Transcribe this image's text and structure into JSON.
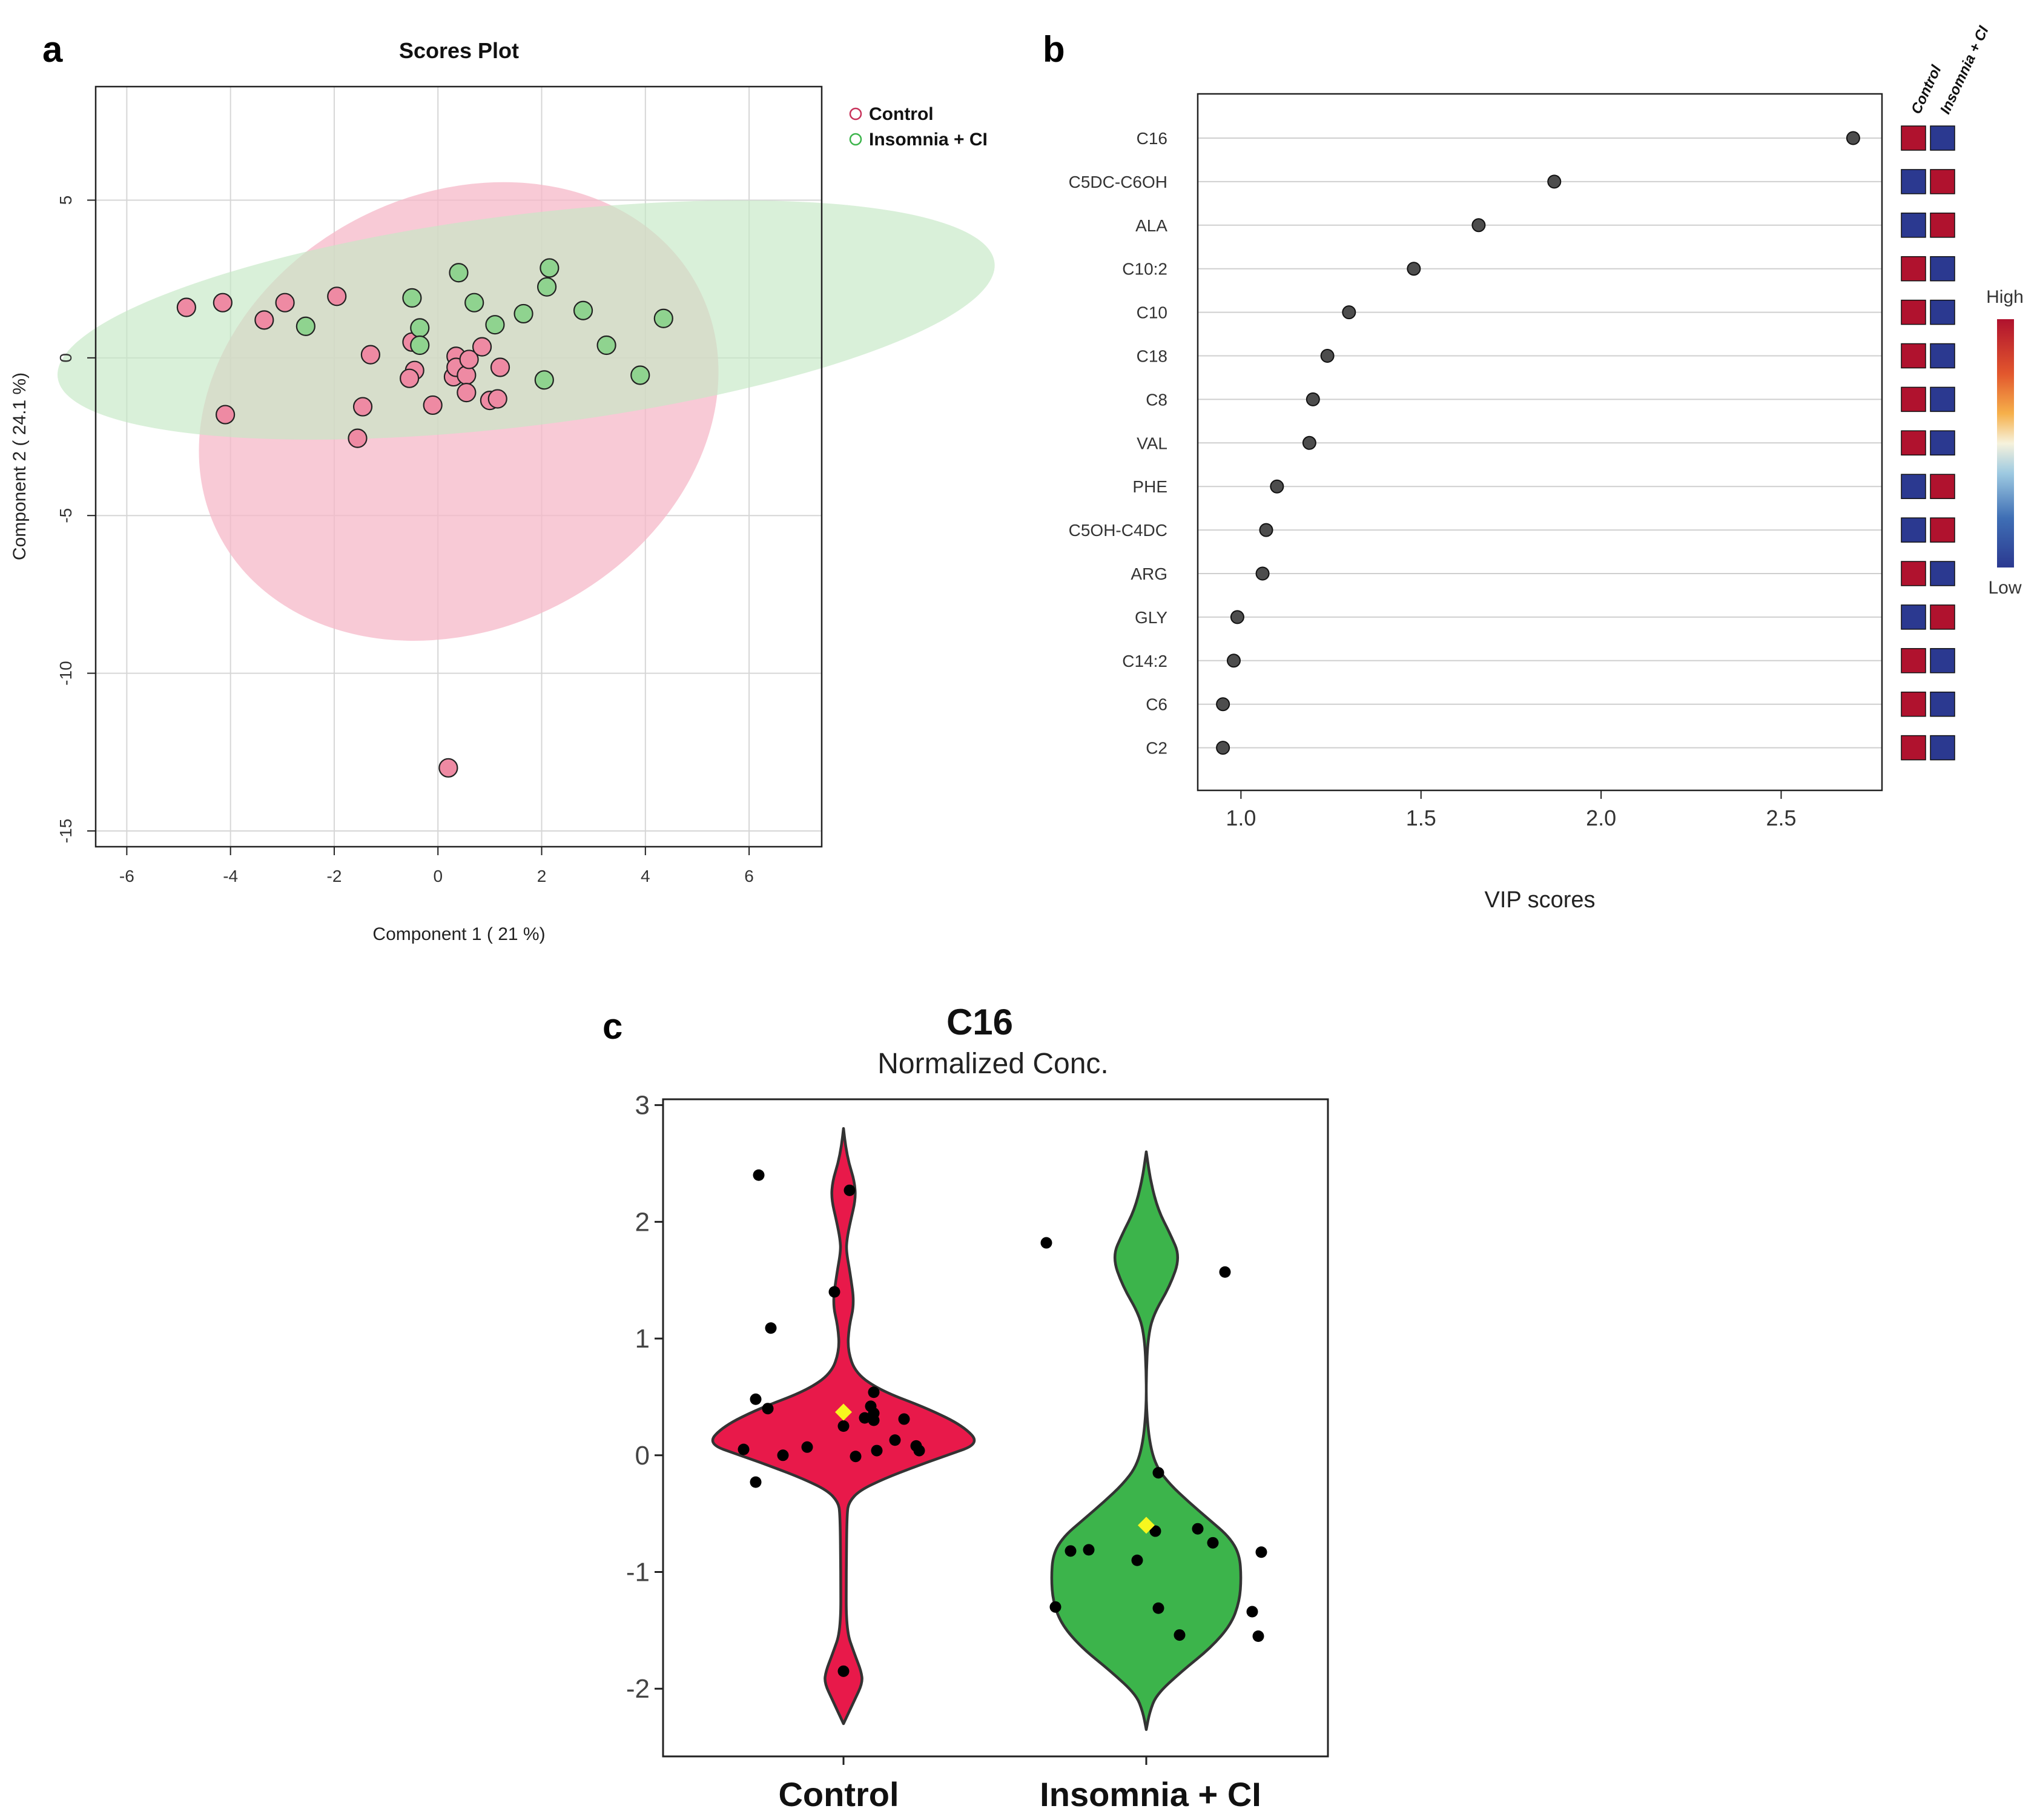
{
  "panels": {
    "a": "a",
    "b": "b",
    "c": "c"
  },
  "colors": {
    "control_fill": "#f5b8c8",
    "control_point": "#ee8aa3",
    "insomnia_fill": "#c4e8c4",
    "insomnia_point": "#8fd38f",
    "violin_control": "#e8194a",
    "violin_insomnia": "#3cb44b",
    "heat_high": "#b0122e",
    "heat_low": "#2b3990",
    "mean_marker": "#f7f71e"
  },
  "chart_data": [
    {
      "type": "scatter",
      "title": "Scores Plot",
      "xlabel": "Component 1 ( 21 %)",
      "ylabel": "Component 2 ( 24.1 %)",
      "xlim": [
        -6.6,
        7.4
      ],
      "ylim": [
        -15.5,
        8.6
      ],
      "xticks": [
        "-6",
        "-4",
        "-2",
        "0",
        "2",
        "4",
        "6"
      ],
      "xtick_values": [
        -6,
        -4,
        -2,
        0,
        2,
        4,
        6
      ],
      "yticks": [
        "5",
        "0",
        "-5",
        "-10",
        "-15"
      ],
      "ytick_values": [
        5,
        0,
        -5,
        -10,
        -15
      ],
      "legend": [
        "Control",
        "Insomnia + CI"
      ],
      "legend_position": "top-right outside",
      "ellipses": [
        {
          "name": "Control",
          "center": [
            0.4,
            -1.7
          ],
          "radius_x": 5.2,
          "radius_y": 6.9,
          "angle": -27
        },
        {
          "name": "Insomnia + CI",
          "center": [
            1.7,
            1.2
          ],
          "radius_x": 9.1,
          "radius_y": 3.35,
          "angle": -7
        }
      ],
      "series": [
        {
          "name": "Control",
          "points": [
            [
              -4.85,
              1.6
            ],
            [
              -4.15,
              1.75
            ],
            [
              -3.35,
              1.2
            ],
            [
              -2.95,
              1.75
            ],
            [
              -1.95,
              1.95
            ],
            [
              -4.1,
              -1.8
            ],
            [
              -1.3,
              0.1
            ],
            [
              -1.45,
              -1.55
            ],
            [
              -1.55,
              -2.55
            ],
            [
              -0.5,
              0.5
            ],
            [
              -0.45,
              -0.4
            ],
            [
              -0.55,
              -0.65
            ],
            [
              0.3,
              -0.6
            ],
            [
              0.35,
              0.05
            ],
            [
              0.35,
              -0.3
            ],
            [
              0.55,
              -0.55
            ],
            [
              0.6,
              -0.05
            ],
            [
              0.85,
              0.35
            ],
            [
              1.2,
              -0.3
            ],
            [
              0.55,
              -1.1
            ],
            [
              -0.1,
              -1.5
            ],
            [
              1.0,
              -1.35
            ],
            [
              1.15,
              -1.3
            ],
            [
              0.2,
              -13.0
            ]
          ]
        },
        {
          "name": "Insomnia + CI",
          "points": [
            [
              -2.55,
              1.0
            ],
            [
              -0.5,
              1.9
            ],
            [
              -0.35,
              0.95
            ],
            [
              -0.35,
              0.4
            ],
            [
              0.4,
              2.7
            ],
            [
              0.7,
              1.75
            ],
            [
              1.1,
              1.05
            ],
            [
              1.65,
              1.4
            ],
            [
              2.1,
              2.25
            ],
            [
              2.15,
              2.85
            ],
            [
              2.05,
              -0.7
            ],
            [
              2.8,
              1.5
            ],
            [
              3.25,
              0.4
            ],
            [
              3.9,
              -0.55
            ],
            [
              4.35,
              1.25
            ]
          ]
        }
      ]
    },
    {
      "type": "dot",
      "xlabel": "VIP scores",
      "xlim": [
        0.88,
        2.78
      ],
      "xticks": [
        "1.0",
        "1.5",
        "2.0",
        "2.5"
      ],
      "xtick_values": [
        1.0,
        1.5,
        2.0,
        2.5
      ],
      "features": [
        "C16",
        "C5DC-C6OH",
        "ALA",
        "C10:2",
        "C10",
        "C18",
        "C8",
        "VAL",
        "PHE",
        "C5OH-C4DC",
        "ARG",
        "GLY",
        "C14:2",
        "C6",
        "C2"
      ],
      "values": [
        2.7,
        1.87,
        1.66,
        1.48,
        1.3,
        1.24,
        1.2,
        1.19,
        1.1,
        1.07,
        1.06,
        0.99,
        0.98,
        0.95,
        0.95
      ],
      "heatmap_columns": [
        "Control",
        "Insomnia + CI"
      ],
      "heatmap": [
        [
          "high",
          "low"
        ],
        [
          "low",
          "high"
        ],
        [
          "low",
          "high"
        ],
        [
          "high",
          "low"
        ],
        [
          "high",
          "low"
        ],
        [
          "high",
          "low"
        ],
        [
          "high",
          "low"
        ],
        [
          "high",
          "low"
        ],
        [
          "low",
          "high"
        ],
        [
          "low",
          "high"
        ],
        [
          "high",
          "low"
        ],
        [
          "low",
          "high"
        ],
        [
          "high",
          "low"
        ],
        [
          "high",
          "low"
        ],
        [
          "high",
          "low"
        ]
      ],
      "colorbar_labels": {
        "high": "High",
        "low": "Low"
      }
    },
    {
      "type": "violin",
      "title": "C16",
      "subtitle": "Normalized Conc.",
      "categories": [
        "Control",
        "Insomnia + CI"
      ],
      "ylim": [
        -2.58,
        3.05
      ],
      "yticks": [
        "3",
        "2",
        "1",
        "0",
        "-1",
        "-2"
      ],
      "ytick_values": [
        3,
        2,
        1,
        0,
        -1,
        -2
      ],
      "violin_range": [
        [
          -2.3,
          2.8
        ],
        [
          -2.35,
          2.6
        ]
      ],
      "density_profiles": [
        [
          [
            -2.3,
            0.0
          ],
          [
            -2.1,
            0.08
          ],
          [
            -1.95,
            0.14
          ],
          [
            -1.85,
            0.13
          ],
          [
            -1.7,
            0.08
          ],
          [
            -1.5,
            0.02
          ],
          [
            -1.0,
            0.02
          ],
          [
            -0.5,
            0.025
          ],
          [
            -0.4,
            0.04
          ],
          [
            -0.3,
            0.12
          ],
          [
            -0.2,
            0.3
          ],
          [
            -0.1,
            0.52
          ],
          [
            0.0,
            0.76
          ],
          [
            0.1,
            1.0
          ],
          [
            0.25,
            0.88
          ],
          [
            0.4,
            0.62
          ],
          [
            0.55,
            0.28
          ],
          [
            0.7,
            0.09
          ],
          [
            0.9,
            0.03
          ],
          [
            1.1,
            0.04
          ],
          [
            1.3,
            0.08
          ],
          [
            1.55,
            0.05
          ],
          [
            1.75,
            0.02
          ],
          [
            1.85,
            0.025
          ],
          [
            2.0,
            0.05
          ],
          [
            2.2,
            0.09
          ],
          [
            2.35,
            0.08
          ],
          [
            2.5,
            0.04
          ],
          [
            2.65,
            0.015
          ],
          [
            2.8,
            0.0
          ]
        ],
        [
          [
            -2.35,
            0.0
          ],
          [
            -2.2,
            0.02
          ],
          [
            -2.05,
            0.06
          ],
          [
            -1.85,
            0.21
          ],
          [
            -1.65,
            0.38
          ],
          [
            -1.45,
            0.5
          ],
          [
            -1.25,
            0.55
          ],
          [
            -1.05,
            0.56
          ],
          [
            -0.85,
            0.55
          ],
          [
            -0.7,
            0.49
          ],
          [
            -0.55,
            0.37
          ],
          [
            -0.4,
            0.25
          ],
          [
            -0.25,
            0.14
          ],
          [
            -0.1,
            0.06
          ],
          [
            0.1,
            0.02
          ],
          [
            0.4,
            0.0
          ],
          [
            0.7,
            0.0
          ],
          [
            1.0,
            0.01
          ],
          [
            1.2,
            0.04
          ],
          [
            1.45,
            0.14
          ],
          [
            1.7,
            0.2
          ],
          [
            1.9,
            0.14
          ],
          [
            2.1,
            0.07
          ],
          [
            2.35,
            0.025
          ],
          [
            2.6,
            0.0
          ]
        ]
      ],
      "points": [
        [
          [
            -0.28,
            2.4
          ],
          [
            0.02,
            2.27
          ],
          [
            -0.03,
            1.4
          ],
          [
            -0.24,
            1.09
          ],
          [
            -0.29,
            0.48
          ],
          [
            -0.25,
            0.4
          ],
          [
            0.1,
            0.54
          ],
          [
            0.09,
            0.42
          ],
          [
            0.1,
            0.36
          ],
          [
            0.07,
            0.32
          ],
          [
            0.1,
            0.3
          ],
          [
            0.17,
            0.13
          ],
          [
            0.2,
            0.31
          ],
          [
            0.24,
            0.08
          ],
          [
            0.25,
            0.04
          ],
          [
            0.11,
            0.04
          ],
          [
            0.0,
            0.25
          ],
          [
            -0.12,
            0.07
          ],
          [
            -0.2,
            0.0
          ],
          [
            -0.33,
            0.05
          ],
          [
            -0.29,
            -0.23
          ],
          [
            0.04,
            -0.01
          ],
          [
            0.0,
            -1.85
          ]
        ],
        [
          [
            -0.33,
            1.82
          ],
          [
            0.26,
            1.57
          ],
          [
            0.04,
            -0.15
          ],
          [
            0.03,
            -0.65
          ],
          [
            0.17,
            -0.63
          ],
          [
            0.22,
            -0.75
          ],
          [
            -0.19,
            -0.81
          ],
          [
            -0.25,
            -0.82
          ],
          [
            0.38,
            -0.83
          ],
          [
            -0.03,
            -0.9
          ],
          [
            -0.3,
            -1.3
          ],
          [
            0.04,
            -1.31
          ],
          [
            0.35,
            -1.34
          ],
          [
            0.11,
            -1.54
          ],
          [
            0.37,
            -1.55
          ]
        ]
      ],
      "means": [
        0.37,
        -0.6
      ]
    }
  ]
}
